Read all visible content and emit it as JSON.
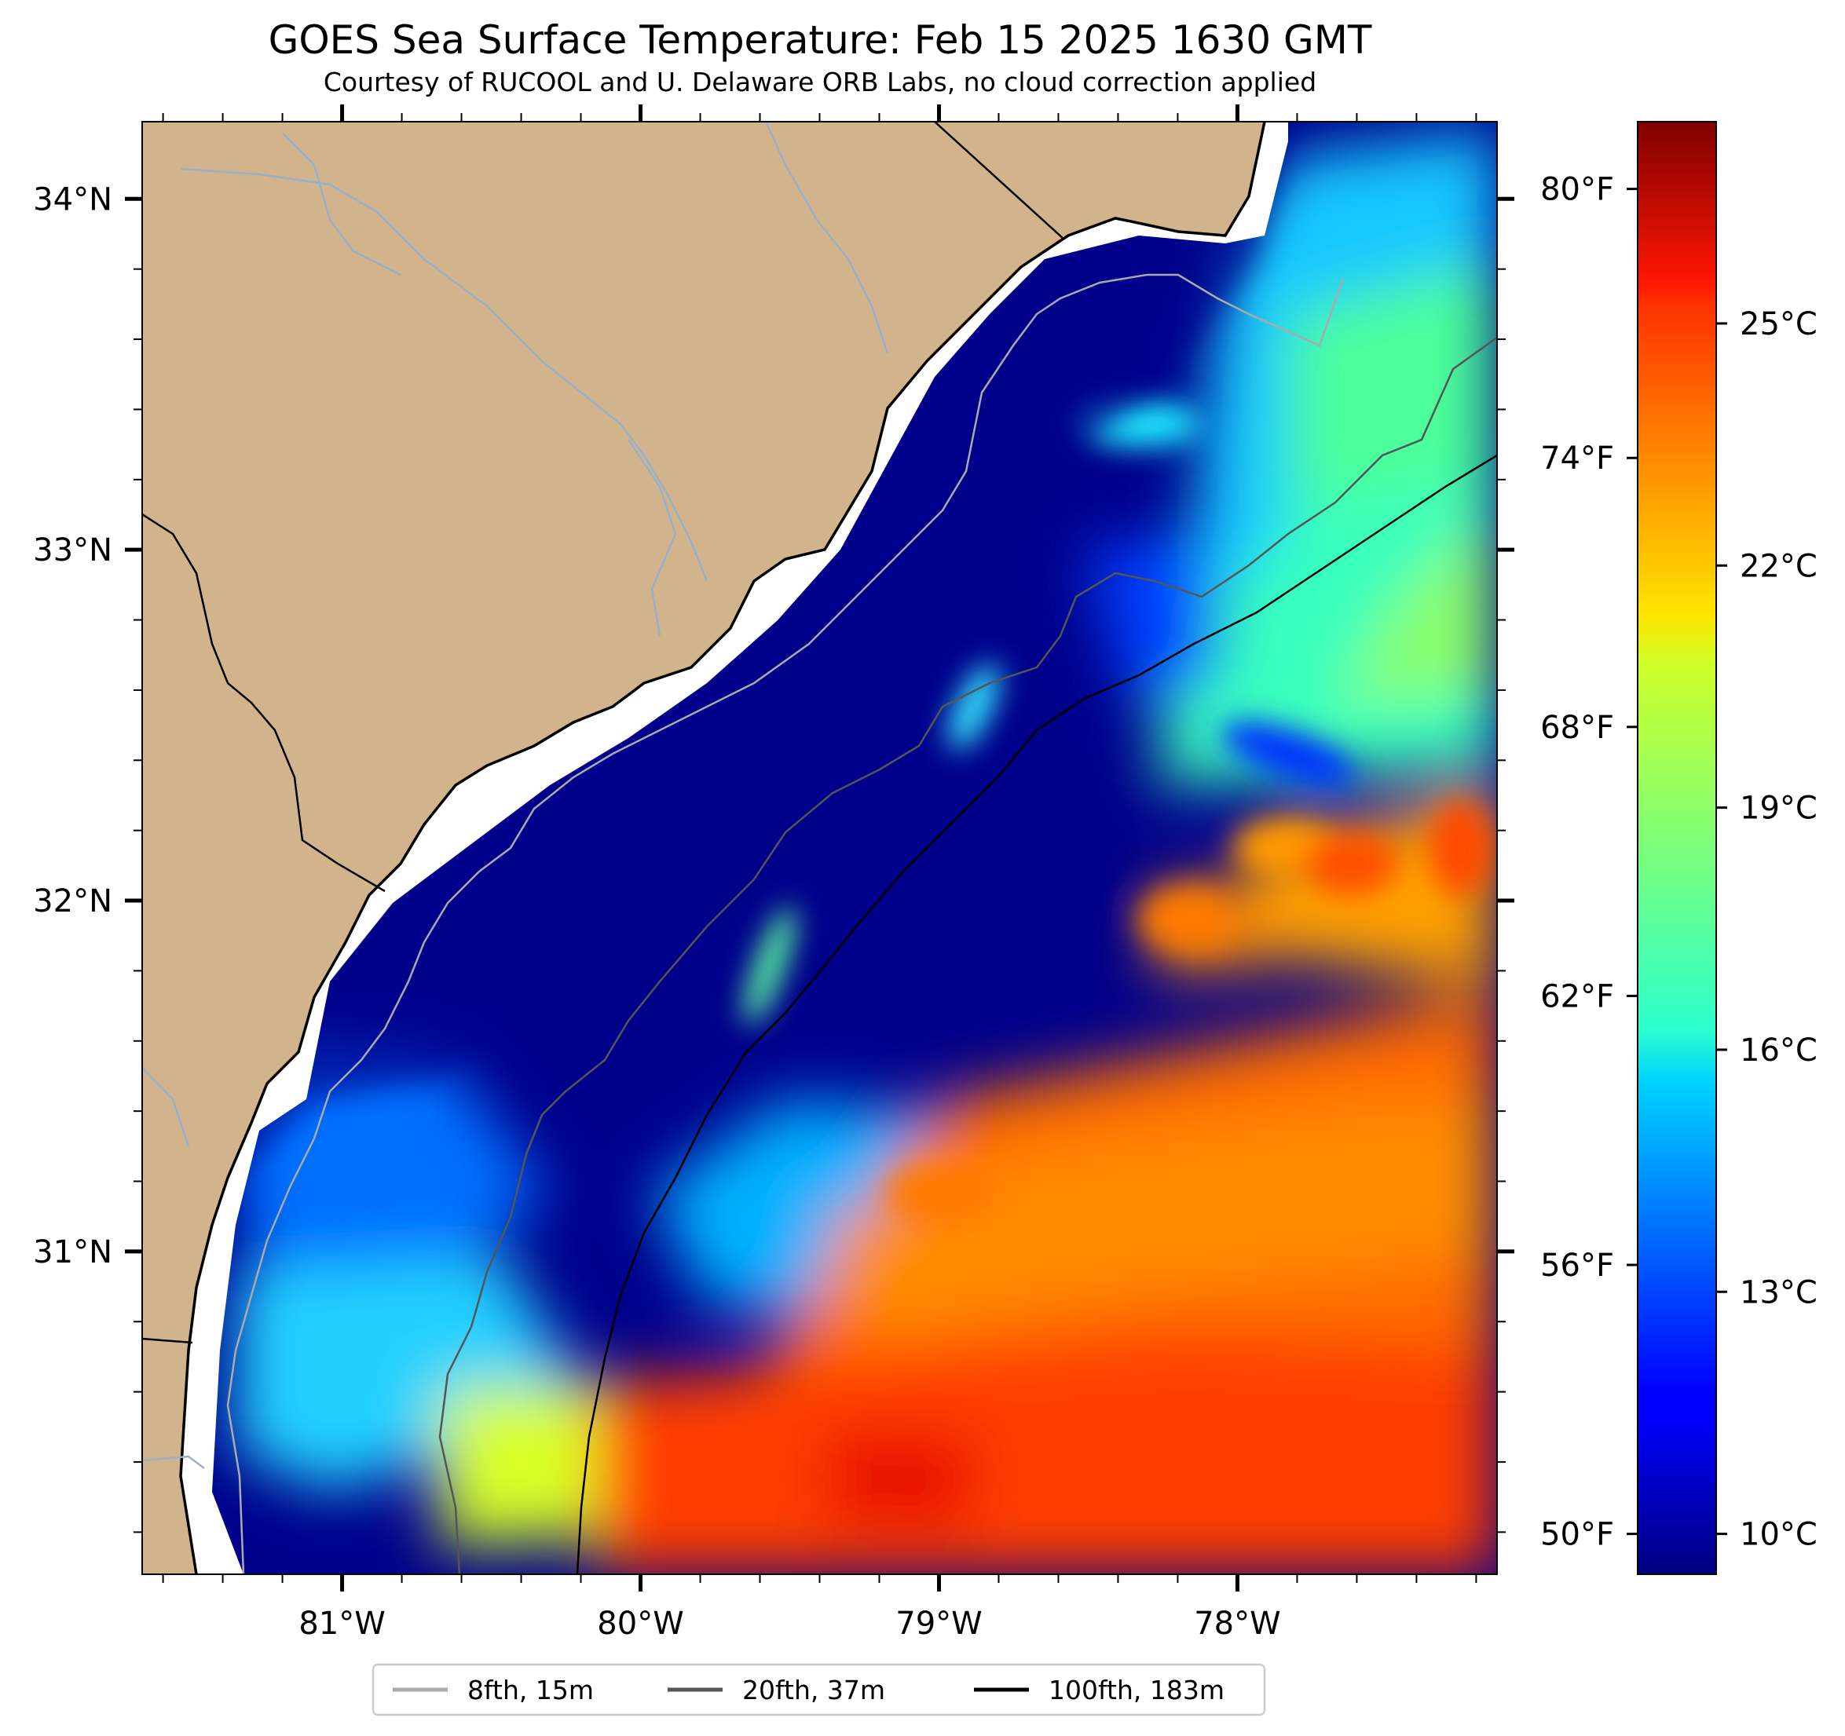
{
  "title": "GOES Sea Surface Temperature: Feb 15 2025 1630 GMT",
  "subtitle": "Courtesy of RUCOOL and U. Delaware ORB Labs, no cloud correction applied",
  "map": {
    "lat_ticks": [
      {
        "value": 34,
        "label": "34°N"
      },
      {
        "value": 33,
        "label": "33°N"
      },
      {
        "value": 32,
        "label": "32°N"
      },
      {
        "value": 31,
        "label": "31°N"
      }
    ],
    "lon_ticks": [
      {
        "value": -81,
        "label": "81°W"
      },
      {
        "value": -80,
        "label": "80°W"
      },
      {
        "value": -79,
        "label": "79°W"
      },
      {
        "value": -78,
        "label": "78°W"
      }
    ],
    "extent": {
      "lon": [
        -81.67,
        -77.13
      ],
      "lat": [
        30.08,
        34.22
      ]
    },
    "land_color": "#d2b48c",
    "colormap": "jet"
  },
  "colorbar": {
    "celsius_range": [
      9.5,
      27.5
    ],
    "celsius_labels": [
      {
        "value": 25,
        "label": "25°C"
      },
      {
        "value": 22,
        "label": "22°C"
      },
      {
        "value": 19,
        "label": "19°C"
      },
      {
        "value": 16,
        "label": "16°C"
      },
      {
        "value": 13,
        "label": "13°C"
      },
      {
        "value": 10,
        "label": "10°C"
      }
    ],
    "fahrenheit_labels": [
      {
        "value": 80,
        "label": "80°F"
      },
      {
        "value": 74,
        "label": "74°F"
      },
      {
        "value": 68,
        "label": "68°F"
      },
      {
        "value": 62,
        "label": "62°F"
      },
      {
        "value": 56,
        "label": "56°F"
      },
      {
        "value": 50,
        "label": "50°F"
      }
    ]
  },
  "legend": {
    "placement": "bottom-center",
    "items": [
      {
        "label": "8fth, 15m",
        "color": "#aaaaaa"
      },
      {
        "label": "20fth, 37m",
        "color": "#555555"
      },
      {
        "label": "100fth, 183m",
        "color": "#000000"
      }
    ]
  }
}
